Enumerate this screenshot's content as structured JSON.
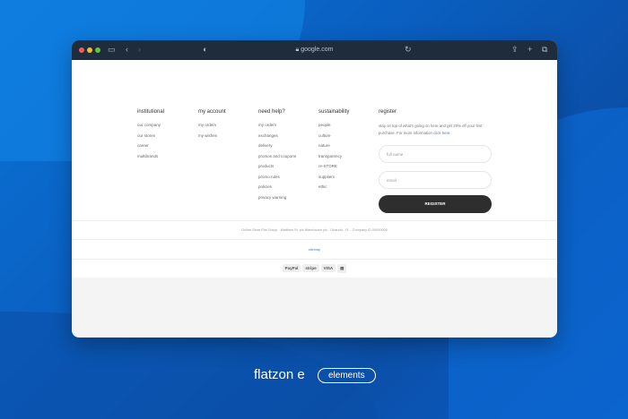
{
  "browser": {
    "url": "google.com"
  },
  "columns": [
    {
      "title": "institutional",
      "items": [
        "our company",
        "our stores",
        "career",
        "multibrands"
      ]
    },
    {
      "title": "my account",
      "items": [
        "my orders",
        "my wishes"
      ]
    },
    {
      "title": "need help?",
      "items": [
        "my orders",
        "exchanges",
        "delivery",
        "promos and coupons",
        "products",
        "promo rules",
        "policies",
        "privacy warning"
      ]
    },
    {
      "title": "sustainability",
      "items": [
        "people",
        "culture",
        "nature",
        "transparency",
        "re-STORE",
        "suppliers",
        "ethic"
      ]
    }
  ],
  "register": {
    "title": "register",
    "text": "stay on top of what's going on here and get 20% off your first purchase. For more information ",
    "link": "click here.",
    "name_placeholder": "full name",
    "email_placeholder": "email",
    "button": "REGISTER"
  },
  "footer": {
    "company": "Online Store Flat Group - Matthew St. plc Warehouse plc - Orlando - FL - Company ID 00000000",
    "sitemap": "sitemap",
    "payments": [
      "PayPal",
      "stripe",
      "VISA",
      "card"
    ]
  },
  "brand": {
    "name": "flatzon e",
    "tag": "elements"
  }
}
